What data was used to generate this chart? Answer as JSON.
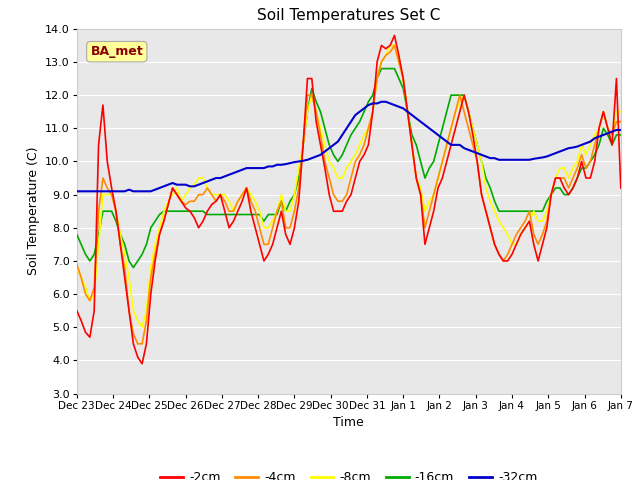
{
  "title": "Soil Temperatures Set C",
  "xlabel": "Time",
  "ylabel": "Soil Temperature (C)",
  "ylim": [
    3.0,
    14.0
  ],
  "yticks": [
    3.0,
    4.0,
    5.0,
    6.0,
    7.0,
    8.0,
    9.0,
    10.0,
    11.0,
    12.0,
    13.0,
    14.0
  ],
  "plot_bg_color": "#e8e8e8",
  "fig_bg_color": "#ffffff",
  "annotation_text": "BA_met",
  "annotation_color": "#8b0000",
  "annotation_bg": "#ffff99",
  "series_colors": {
    "-2cm": "#ff0000",
    "-4cm": "#ff8c00",
    "-8cm": "#ffff00",
    "-16cm": "#00aa00",
    "-32cm": "#0000cc"
  },
  "xtick_labels": [
    "Dec 23",
    "Dec 24",
    "Dec 25",
    "Dec 26",
    "Dec 27",
    "Dec 28",
    "Dec 29",
    "Dec 30",
    "Dec 31",
    "Jan 1",
    "Jan 2",
    "Jan 3",
    "Jan 4",
    "Jan 5",
    "Jan 6",
    "Jan 7"
  ],
  "series": {
    "-2cm": [
      5.5,
      5.2,
      4.85,
      4.7,
      5.5,
      10.5,
      11.7,
      10.0,
      9.2,
      8.5,
      7.5,
      6.5,
      5.5,
      4.5,
      4.1,
      3.9,
      4.5,
      6.0,
      7.0,
      7.8,
      8.2,
      8.7,
      9.2,
      9.0,
      8.8,
      8.6,
      8.5,
      8.3,
      8.0,
      8.2,
      8.5,
      8.7,
      8.8,
      9.0,
      8.5,
      8.0,
      8.2,
      8.5,
      8.8,
      9.2,
      8.5,
      8.0,
      7.5,
      7.0,
      7.2,
      7.5,
      8.0,
      8.5,
      7.8,
      7.5,
      8.0,
      8.8,
      10.5,
      12.5,
      12.5,
      11.2,
      10.5,
      9.8,
      9.0,
      8.5,
      8.5,
      8.5,
      8.8,
      9.0,
      9.5,
      10.0,
      10.2,
      10.5,
      11.5,
      13.0,
      13.5,
      13.4,
      13.5,
      13.8,
      13.2,
      12.5,
      11.5,
      10.5,
      9.5,
      9.0,
      7.5,
      8.0,
      8.5,
      9.2,
      9.5,
      10.0,
      10.5,
      11.0,
      11.5,
      12.0,
      11.5,
      10.8,
      10.0,
      9.0,
      8.5,
      8.0,
      7.5,
      7.2,
      7.0,
      7.0,
      7.2,
      7.5,
      7.8,
      8.0,
      8.2,
      7.5,
      7.0,
      7.5,
      8.0,
      9.0,
      9.5,
      9.5,
      9.2,
      9.0,
      9.2,
      9.5,
      10.0,
      9.5,
      9.5,
      10.0,
      11.0,
      11.5,
      11.0,
      10.5,
      12.5,
      9.2
    ],
    "-4cm": [
      6.9,
      6.5,
      6.0,
      5.8,
      6.2,
      8.5,
      9.5,
      9.2,
      9.0,
      8.5,
      7.5,
      6.8,
      5.5,
      4.8,
      4.5,
      4.5,
      5.2,
      6.5,
      7.2,
      7.8,
      8.2,
      8.7,
      9.2,
      9.0,
      8.8,
      8.7,
      8.8,
      8.8,
      9.0,
      9.0,
      9.2,
      9.0,
      8.8,
      9.0,
      8.8,
      8.5,
      8.5,
      8.8,
      9.0,
      9.2,
      8.8,
      8.5,
      8.0,
      7.5,
      7.5,
      8.0,
      8.5,
      8.8,
      8.0,
      8.0,
      8.5,
      9.2,
      10.5,
      12.0,
      12.0,
      11.5,
      10.8,
      10.0,
      9.5,
      9.0,
      8.8,
      8.8,
      9.0,
      9.5,
      10.0,
      10.2,
      10.5,
      11.0,
      11.5,
      12.5,
      13.0,
      13.2,
      13.3,
      13.5,
      13.0,
      12.5,
      11.5,
      10.5,
      9.5,
      9.0,
      8.0,
      8.5,
      9.0,
      9.5,
      10.0,
      10.5,
      11.0,
      11.5,
      12.0,
      11.5,
      11.0,
      10.5,
      10.0,
      9.0,
      8.5,
      8.0,
      7.5,
      7.2,
      7.0,
      7.2,
      7.5,
      7.8,
      8.0,
      8.2,
      8.5,
      7.8,
      7.5,
      7.8,
      8.2,
      9.0,
      9.5,
      9.5,
      9.5,
      9.2,
      9.5,
      9.8,
      10.2,
      9.8,
      10.0,
      10.5,
      11.0,
      11.5,
      11.0,
      10.8,
      11.2,
      11.2
    ],
    "-8cm": [
      6.8,
      6.5,
      6.2,
      5.8,
      6.0,
      7.5,
      9.0,
      9.0,
      9.0,
      8.5,
      7.8,
      7.2,
      6.5,
      5.5,
      5.2,
      5.0,
      5.5,
      6.8,
      7.5,
      8.0,
      8.5,
      8.8,
      9.0,
      9.2,
      8.8,
      9.0,
      9.2,
      9.3,
      9.5,
      9.5,
      9.2,
      9.0,
      9.0,
      9.0,
      9.0,
      8.8,
      8.5,
      8.8,
      9.0,
      9.2,
      9.0,
      8.8,
      8.5,
      8.0,
      8.0,
      8.2,
      8.5,
      9.0,
      8.5,
      8.5,
      9.0,
      9.8,
      10.5,
      11.5,
      12.0,
      11.5,
      11.0,
      10.5,
      10.0,
      9.8,
      9.5,
      9.5,
      9.8,
      10.0,
      10.2,
      10.5,
      10.8,
      11.0,
      11.5,
      12.5,
      13.0,
      13.2,
      13.5,
      13.5,
      13.0,
      12.5,
      11.5,
      10.5,
      9.5,
      9.2,
      8.5,
      8.8,
      9.0,
      9.5,
      10.0,
      10.5,
      11.0,
      11.5,
      11.8,
      12.0,
      11.5,
      11.0,
      10.5,
      10.0,
      9.2,
      8.8,
      8.5,
      8.2,
      8.0,
      7.8,
      7.5,
      7.5,
      7.8,
      8.0,
      8.2,
      8.5,
      8.2,
      8.2,
      8.5,
      9.0,
      9.5,
      9.8,
      9.8,
      9.5,
      9.8,
      10.0,
      10.5,
      10.2,
      10.5,
      10.8,
      11.0,
      11.5,
      11.0,
      10.8,
      11.5,
      11.5
    ],
    "-16cm": [
      7.8,
      7.5,
      7.2,
      7.0,
      7.2,
      7.8,
      8.5,
      8.5,
      8.5,
      8.2,
      7.8,
      7.5,
      7.0,
      6.8,
      7.0,
      7.2,
      7.5,
      8.0,
      8.2,
      8.4,
      8.5,
      8.5,
      8.5,
      8.5,
      8.5,
      8.5,
      8.5,
      8.5,
      8.5,
      8.5,
      8.4,
      8.4,
      8.4,
      8.4,
      8.4,
      8.4,
      8.4,
      8.4,
      8.4,
      8.4,
      8.4,
      8.4,
      8.4,
      8.2,
      8.4,
      8.4,
      8.4,
      8.8,
      8.5,
      8.8,
      9.0,
      9.5,
      10.5,
      11.5,
      12.2,
      11.8,
      11.5,
      11.0,
      10.5,
      10.2,
      10.0,
      10.2,
      10.5,
      10.8,
      11.0,
      11.2,
      11.5,
      11.8,
      12.0,
      12.5,
      12.8,
      12.8,
      12.8,
      12.8,
      12.5,
      12.2,
      11.5,
      10.8,
      10.5,
      10.0,
      9.5,
      9.8,
      10.0,
      10.5,
      11.0,
      11.5,
      12.0,
      12.0,
      12.0,
      12.0,
      11.5,
      11.0,
      10.5,
      10.0,
      9.5,
      9.2,
      8.8,
      8.5,
      8.5,
      8.5,
      8.5,
      8.5,
      8.5,
      8.5,
      8.5,
      8.5,
      8.5,
      8.5,
      8.8,
      9.0,
      9.2,
      9.2,
      9.0,
      9.0,
      9.2,
      9.5,
      9.8,
      9.8,
      10.0,
      10.2,
      10.5,
      11.0,
      10.8,
      10.5,
      10.8,
      10.8
    ],
    "-32cm": [
      9.1,
      9.1,
      9.1,
      9.1,
      9.1,
      9.1,
      9.1,
      9.1,
      9.1,
      9.1,
      9.1,
      9.1,
      9.15,
      9.1,
      9.1,
      9.1,
      9.1,
      9.1,
      9.15,
      9.2,
      9.25,
      9.3,
      9.35,
      9.3,
      9.3,
      9.3,
      9.25,
      9.25,
      9.3,
      9.35,
      9.4,
      9.45,
      9.5,
      9.5,
      9.55,
      9.6,
      9.65,
      9.7,
      9.75,
      9.8,
      9.8,
      9.8,
      9.8,
      9.8,
      9.85,
      9.85,
      9.9,
      9.9,
      9.92,
      9.95,
      9.98,
      10.0,
      10.02,
      10.05,
      10.1,
      10.15,
      10.2,
      10.3,
      10.4,
      10.5,
      10.6,
      10.8,
      11.0,
      11.2,
      11.4,
      11.5,
      11.6,
      11.7,
      11.75,
      11.75,
      11.8,
      11.8,
      11.75,
      11.7,
      11.65,
      11.6,
      11.5,
      11.4,
      11.3,
      11.2,
      11.1,
      11.0,
      10.9,
      10.8,
      10.7,
      10.6,
      10.5,
      10.5,
      10.5,
      10.4,
      10.35,
      10.3,
      10.25,
      10.2,
      10.15,
      10.1,
      10.1,
      10.05,
      10.05,
      10.05,
      10.05,
      10.05,
      10.05,
      10.05,
      10.05,
      10.08,
      10.1,
      10.12,
      10.15,
      10.2,
      10.25,
      10.3,
      10.35,
      10.4,
      10.42,
      10.45,
      10.5,
      10.55,
      10.6,
      10.7,
      10.75,
      10.8,
      10.85,
      10.9,
      10.95,
      10.95,
      10.95,
      10.95
    ]
  }
}
